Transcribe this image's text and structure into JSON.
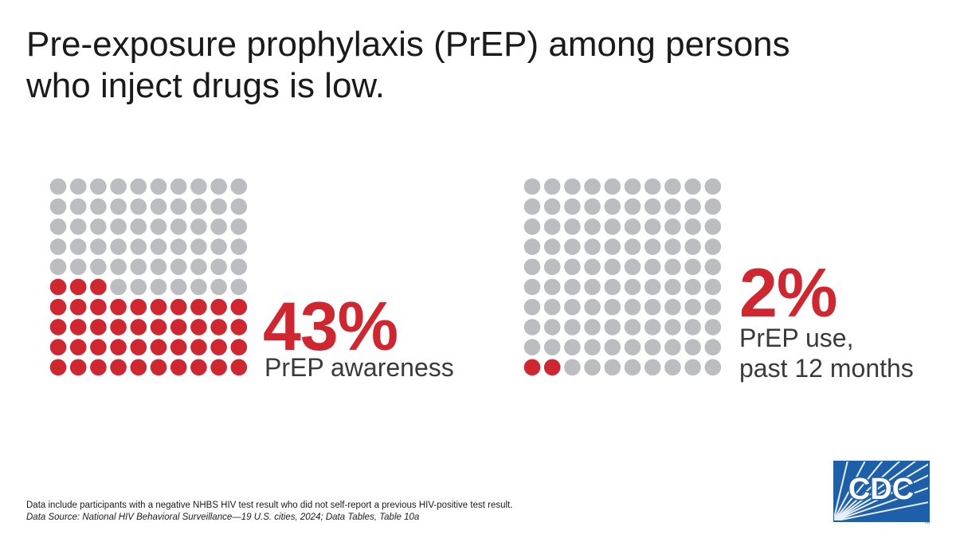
{
  "title": {
    "line1": "Pre-exposure prophylaxis (PrEP) among persons",
    "line2": "who inject drugs is low."
  },
  "chart_data": [
    {
      "type": "waffle",
      "total": 100,
      "highlighted": 43,
      "value_label": "43%",
      "label": "PrEP awareness",
      "fill_from": "bottom"
    },
    {
      "type": "waffle",
      "total": 100,
      "highlighted": 2,
      "value_label": "2%",
      "label_lines": [
        "PrEP use,",
        "past 12 months"
      ],
      "fill_from": "bottom"
    }
  ],
  "colors": {
    "highlight": "#d0262f",
    "base": "#bcbdc0",
    "logo_blue": "#1d5fa8"
  },
  "footnote": {
    "note": "Data include participants with a negative NHBS HIV test result who did not self-report a previous HIV-positive test result.",
    "source": "Data Source: National HIV Behavioral Surveillance—19 U.S. cities, 2024; Data Tables, Table 10a"
  },
  "logo": {
    "text": "CDC",
    "icon": "cdc-logo"
  }
}
